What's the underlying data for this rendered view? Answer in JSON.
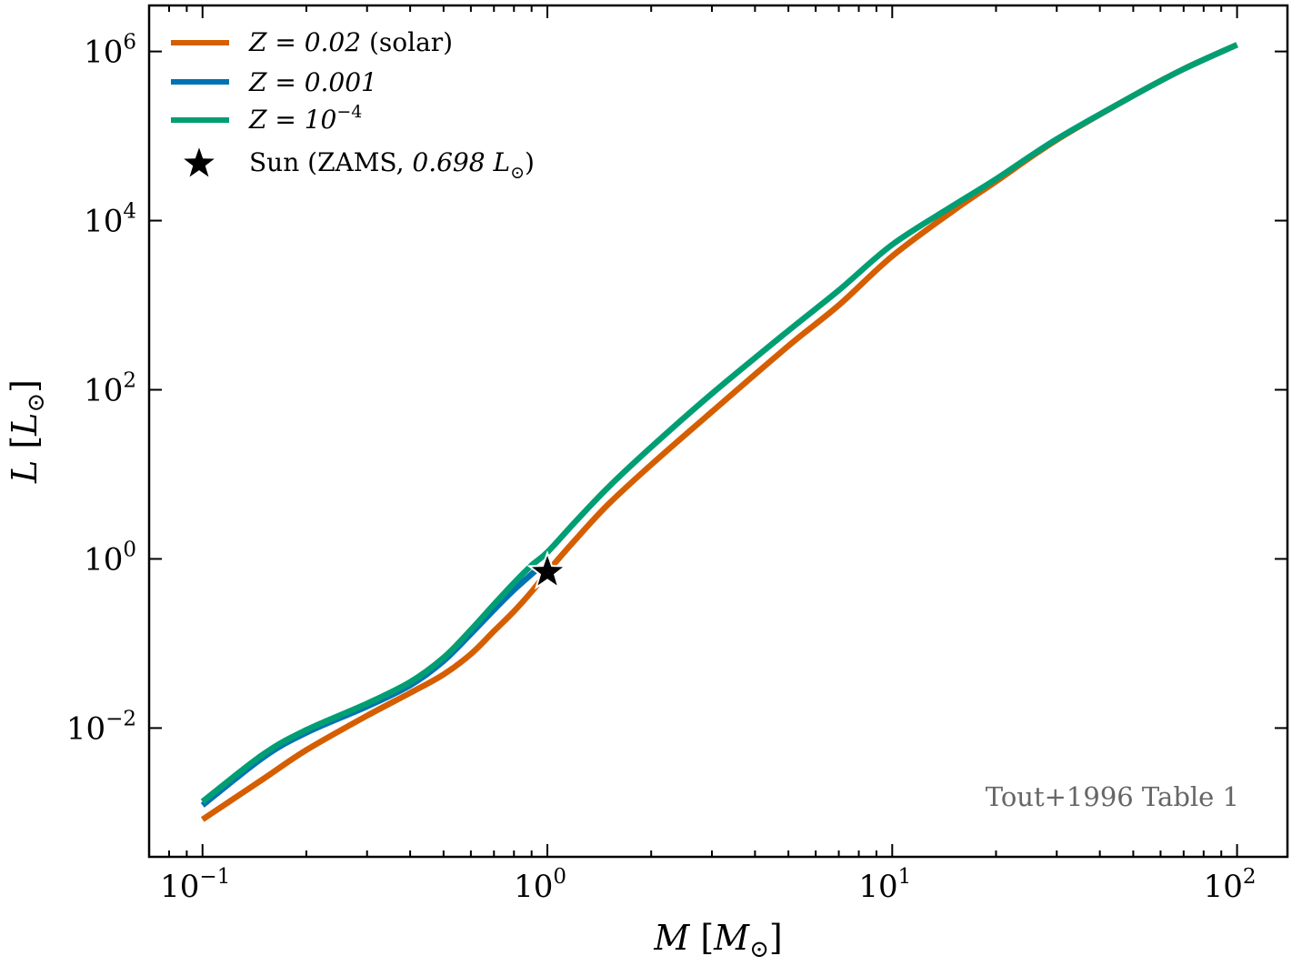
{
  "chart_data": {
    "type": "line",
    "x_scale": "log",
    "y_scale": "log",
    "xlabel_var": "M",
    "xlabel_unit": "M",
    "ylabel_var": "L",
    "ylabel_unit": "L",
    "unit_subscript": "⊙",
    "xlim": [
      0.07,
      140
    ],
    "ylim": [
      0.0003,
      3500000
    ],
    "x_ticks": [
      {
        "value": 0.1,
        "base": "10",
        "exp": "−1"
      },
      {
        "value": 1,
        "base": "10",
        "exp": "0"
      },
      {
        "value": 10,
        "base": "10",
        "exp": "1"
      },
      {
        "value": 100,
        "base": "10",
        "exp": "2"
      }
    ],
    "y_ticks": [
      {
        "value": 0.01,
        "base": "10",
        "exp": "−2"
      },
      {
        "value": 1,
        "base": "10",
        "exp": "0"
      },
      {
        "value": 100,
        "base": "10",
        "exp": "2"
      },
      {
        "value": 10000,
        "base": "10",
        "exp": "4"
      },
      {
        "value": 1000000,
        "base": "10",
        "exp": "6"
      }
    ],
    "grid": false,
    "legend_position": "top-left",
    "series": [
      {
        "name": "Z = 0.02 (solar)",
        "legend_math": "Z = 0.02",
        "legend_text": " (solar)",
        "color": "#D55E00",
        "x": [
          0.1,
          0.15,
          0.2,
          0.3,
          0.4,
          0.5,
          0.6,
          0.7,
          0.8,
          0.9,
          1.0,
          1.2,
          1.5,
          2,
          3,
          5,
          7,
          10,
          15,
          20,
          30,
          50,
          70,
          100
        ],
        "y": [
          0.00083,
          0.0025,
          0.0055,
          0.014,
          0.026,
          0.043,
          0.075,
          0.14,
          0.24,
          0.41,
          0.7,
          1.65,
          4.4,
          13,
          55,
          330,
          1000,
          3800,
          13000,
          29000,
          90000,
          300000,
          620000,
          1200000
        ]
      },
      {
        "name": "Z = 0.001",
        "legend_math": "Z = 0.001",
        "legend_text": "",
        "color": "#0072B2",
        "x": [
          0.1,
          0.15,
          0.2,
          0.3,
          0.4,
          0.5,
          0.6,
          0.7,
          0.8,
          0.9,
          0.95
        ],
        "y": [
          0.00122,
          0.0045,
          0.0088,
          0.018,
          0.032,
          0.062,
          0.13,
          0.25,
          0.43,
          0.66,
          0.8
        ]
      },
      {
        "name": "Z = 10^-4",
        "legend_math": "Z = 10",
        "legend_exp": "−4",
        "legend_text": "",
        "color": "#009E73",
        "x": [
          0.1,
          0.15,
          0.2,
          0.3,
          0.4,
          0.5,
          0.6,
          0.7,
          0.8,
          0.9,
          1.0,
          1.2,
          1.5,
          2,
          3,
          5,
          7,
          10,
          15,
          20,
          30,
          50,
          70,
          100
        ],
        "y": [
          0.00135,
          0.0049,
          0.0095,
          0.0195,
          0.035,
          0.068,
          0.145,
          0.29,
          0.52,
          0.84,
          1.2,
          2.7,
          7.0,
          21,
          90,
          500,
          1500,
          5200,
          15000,
          31000,
          92000,
          300000,
          620000,
          1200000
        ]
      }
    ],
    "markers": [
      {
        "name": "Sun (ZAMS, 0.698 L⊙)",
        "legend_text": "Sun (ZAMS, ",
        "legend_math": "0.698 L",
        "legend_sub": "⊙",
        "legend_close": ")",
        "x": 1.0,
        "y": 0.698,
        "color": "#000000",
        "symbol": "star"
      }
    ],
    "annotation": "Tout+1996 Table 1"
  }
}
